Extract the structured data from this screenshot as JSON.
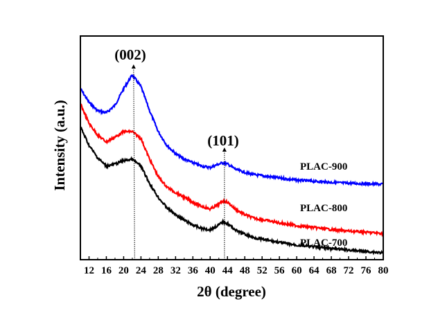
{
  "chart_data": {
    "type": "line",
    "title": "",
    "xlabel": "2θ (degree)",
    "ylabel": "Intensity (a.u.)",
    "xlim": [
      10,
      80
    ],
    "ylim": [
      0,
      97.3
    ],
    "grid": false,
    "xticks": [
      12,
      16,
      20,
      24,
      28,
      32,
      36,
      40,
      44,
      48,
      52,
      56,
      60,
      64,
      68,
      72,
      76,
      80
    ],
    "x": [
      10,
      12,
      14,
      16,
      18,
      20,
      22,
      24,
      26,
      28,
      30,
      32,
      34,
      36,
      38,
      40,
      42,
      43,
      44,
      46,
      48,
      50,
      56,
      60,
      70,
      80
    ],
    "series": [
      {
        "name": "PLAC-900",
        "color": "#0000ff",
        "values": [
          74.4,
          68.4,
          64.8,
          63.9,
          67.2,
          74.4,
          80.4,
          75.3,
          64.8,
          55.7,
          49.7,
          46.1,
          43.7,
          42.2,
          40.7,
          40.1,
          41.6,
          42.2,
          41.6,
          39.2,
          38.0,
          37.0,
          35.5,
          34.6,
          33.4,
          32.8
        ]
      },
      {
        "name": "PLAC-800",
        "color": "#ff0000",
        "values": [
          67.8,
          59.3,
          54.2,
          51.2,
          53.3,
          55.7,
          55.7,
          52.7,
          43.7,
          36.1,
          31.6,
          29.2,
          27.1,
          25.0,
          23.2,
          22.0,
          24.1,
          25.6,
          25.0,
          21.7,
          19.6,
          18.1,
          16.0,
          14.8,
          12.7,
          11.4
        ]
      },
      {
        "name": "PLAC-700",
        "color": "#000000",
        "values": [
          57.8,
          49.7,
          44.3,
          40.7,
          41.6,
          43.1,
          43.7,
          40.7,
          33.1,
          27.1,
          22.6,
          19.6,
          17.2,
          15.1,
          13.6,
          13.0,
          15.1,
          16.6,
          15.7,
          12.7,
          11.1,
          9.6,
          7.5,
          6.3,
          4.5,
          3.0
        ]
      }
    ],
    "annotations": [
      {
        "text": "(002)",
        "x": 22.3
      },
      {
        "text": "(101)",
        "x": 43.3
      }
    ]
  }
}
